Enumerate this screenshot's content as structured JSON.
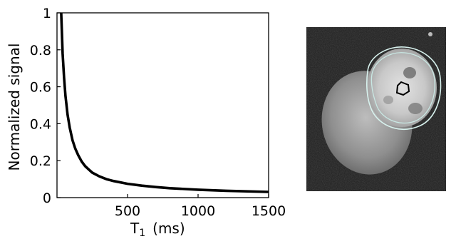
{
  "chart_data": {
    "type": "line",
    "title": "",
    "xlabel": {
      "main": "T",
      "subscript": "1",
      "unit": "(ms)"
    },
    "ylabel": "Normalized signal",
    "xlim": [
      0,
      1500
    ],
    "ylim": [
      0,
      1
    ],
    "x_ticks": [
      "500",
      "1000",
      "1500"
    ],
    "x_tick_values": [
      500,
      1000,
      1500
    ],
    "y_ticks": [
      "0",
      "0.2",
      "0.4",
      "0.6",
      "0.8",
      "1"
    ],
    "y_tick_values": [
      0,
      0.2,
      0.4,
      0.6,
      0.8,
      1
    ],
    "grid": false,
    "legend": "none",
    "series": [
      {
        "color": "#000000",
        "x": [
          30,
          40,
          50,
          60,
          75,
          90,
          110,
          130,
          150,
          175,
          200,
          250,
          300,
          350,
          400,
          500,
          600,
          700,
          800,
          1000,
          1200,
          1500
        ],
        "y": [
          1.0,
          0.78,
          0.65,
          0.55,
          0.45,
          0.38,
          0.31,
          0.265,
          0.23,
          0.195,
          0.17,
          0.135,
          0.115,
          0.1,
          0.09,
          0.075,
          0.065,
          0.057,
          0.051,
          0.043,
          0.037,
          0.031
        ]
      }
    ]
  },
  "image_panel": {
    "background": "#1e1e1e",
    "contour_outer_color": "#d8f2ee",
    "contour_inner_color": "#c9e8e4",
    "roi_color": "#000000"
  }
}
